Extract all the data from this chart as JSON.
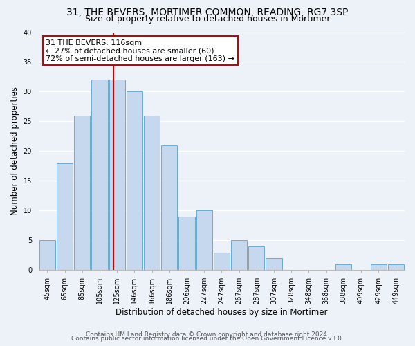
{
  "title": "31, THE BEVERS, MORTIMER COMMON, READING, RG7 3SP",
  "subtitle": "Size of property relative to detached houses in Mortimer",
  "xlabel": "Distribution of detached houses by size in Mortimer",
  "ylabel": "Number of detached properties",
  "bar_labels": [
    "45sqm",
    "65sqm",
    "85sqm",
    "105sqm",
    "125sqm",
    "146sqm",
    "166sqm",
    "186sqm",
    "206sqm",
    "227sqm",
    "247sqm",
    "267sqm",
    "287sqm",
    "307sqm",
    "328sqm",
    "348sqm",
    "368sqm",
    "388sqm",
    "409sqm",
    "429sqm",
    "449sqm"
  ],
  "bar_values": [
    5,
    18,
    26,
    32,
    32,
    30,
    26,
    21,
    9,
    10,
    3,
    5,
    4,
    2,
    0,
    0,
    0,
    1,
    0,
    1,
    1
  ],
  "bar_color": "#c5d8ed",
  "bar_edge_color": "#6aaad4",
  "vline_x": 3.8,
  "vline_color": "#cc0000",
  "annotation_line1": "31 THE BEVERS: 116sqm",
  "annotation_line2": "← 27% of detached houses are smaller (60)",
  "annotation_line3": "72% of semi-detached houses are larger (163) →",
  "annotation_box_color": "#ffffff",
  "annotation_box_edge": "#cc0000",
  "ylim": [
    0,
    40
  ],
  "yticks": [
    0,
    5,
    10,
    15,
    20,
    25,
    30,
    35,
    40
  ],
  "footer_line1": "Contains HM Land Registry data © Crown copyright and database right 2024.",
  "footer_line2": "Contains public sector information licensed under the Open Government Licence v3.0.",
  "background_color": "#edf2f9",
  "plot_bg_color": "#edf2f9",
  "grid_color": "#ffffff",
  "title_fontsize": 10,
  "subtitle_fontsize": 9,
  "axis_label_fontsize": 8.5,
  "tick_fontsize": 7,
  "annotation_fontsize": 8,
  "footer_fontsize": 6.5
}
